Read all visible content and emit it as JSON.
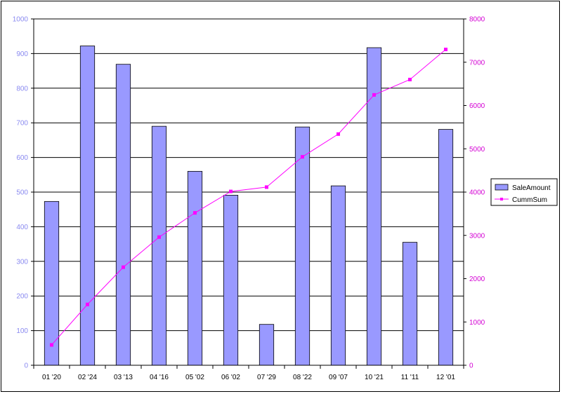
{
  "chart_data": {
    "type": "bar",
    "title": "",
    "xlabel": "",
    "ylabel": "",
    "categories": [
      "01 '20",
      "02 '24",
      "03 '13",
      "04 '16",
      "05 '02",
      "06 '02",
      "07 '29",
      "08 '22",
      "09 '07",
      "10 '21",
      "11 '11",
      "12 '01"
    ],
    "series": [
      {
        "name": "SaleAmount",
        "type": "bar",
        "axis": "left",
        "color": "#9999ff",
        "values": [
          473,
          922,
          869,
          690,
          560,
          491,
          118,
          688,
          518,
          917,
          355,
          681
        ]
      },
      {
        "name": "CummSum",
        "type": "line",
        "axis": "right",
        "color": "#ff00ff",
        "values": [
          470,
          1405,
          2265,
          2960,
          3520,
          4015,
          4115,
          4815,
          5340,
          6245,
          6600,
          7295
        ]
      }
    ],
    "ylim": [
      0,
      1000
    ],
    "y_ticks": [
      "0",
      "100",
      "200",
      "300",
      "400",
      "500",
      "600",
      "700",
      "800",
      "900",
      "1000"
    ],
    "y2lim": [
      0,
      8000
    ],
    "y2_ticks": [
      "0",
      "1000",
      "2000",
      "3000",
      "4000",
      "5000",
      "6000",
      "7000",
      "8000"
    ],
    "grid": true,
    "legend_position": "right"
  }
}
